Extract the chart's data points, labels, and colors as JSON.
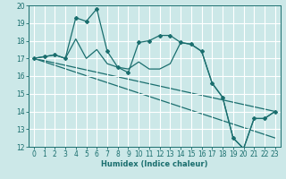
{
  "xlabel": "Humidex (Indice chaleur)",
  "background_color": "#cce8e8",
  "grid_color": "#ffffff",
  "line_color": "#1a6e6e",
  "xlim": [
    -0.5,
    23.5
  ],
  "ylim": [
    12,
    20
  ],
  "yticks": [
    12,
    13,
    14,
    15,
    16,
    17,
    18,
    19,
    20
  ],
  "xticks": [
    0,
    1,
    2,
    3,
    4,
    5,
    6,
    7,
    8,
    9,
    10,
    11,
    12,
    13,
    14,
    15,
    16,
    17,
    18,
    19,
    20,
    21,
    22,
    23
  ],
  "series_jagged_x": [
    0,
    1,
    2,
    3,
    4,
    5,
    6,
    7,
    8,
    9,
    10,
    11,
    12,
    13,
    14,
    15,
    16,
    17,
    18,
    19,
    20,
    21,
    22,
    23
  ],
  "series_jagged_y": [
    17.0,
    17.1,
    17.2,
    17.0,
    19.3,
    19.1,
    19.8,
    17.4,
    16.5,
    16.2,
    17.9,
    18.0,
    18.3,
    18.3,
    17.9,
    17.8,
    17.4,
    15.6,
    14.8,
    12.5,
    11.9,
    13.6,
    13.6,
    14.0
  ],
  "series_smooth_x": [
    0,
    1,
    2,
    3,
    4,
    5,
    6,
    7,
    8,
    9,
    10,
    11,
    12,
    13,
    14,
    15,
    16,
    17,
    18,
    19,
    20,
    21,
    22,
    23
  ],
  "series_smooth_y": [
    17.0,
    17.1,
    17.2,
    17.0,
    18.1,
    17.0,
    17.5,
    16.7,
    16.5,
    16.4,
    16.8,
    16.4,
    16.4,
    16.7,
    17.9,
    17.8,
    17.4,
    15.6,
    14.8,
    12.5,
    11.9,
    13.6,
    13.6,
    14.0
  ],
  "trend1_x": [
    0,
    23
  ],
  "trend1_y": [
    17.0,
    14.0
  ],
  "trend2_x": [
    0,
    23
  ],
  "trend2_y": [
    17.0,
    12.5
  ]
}
